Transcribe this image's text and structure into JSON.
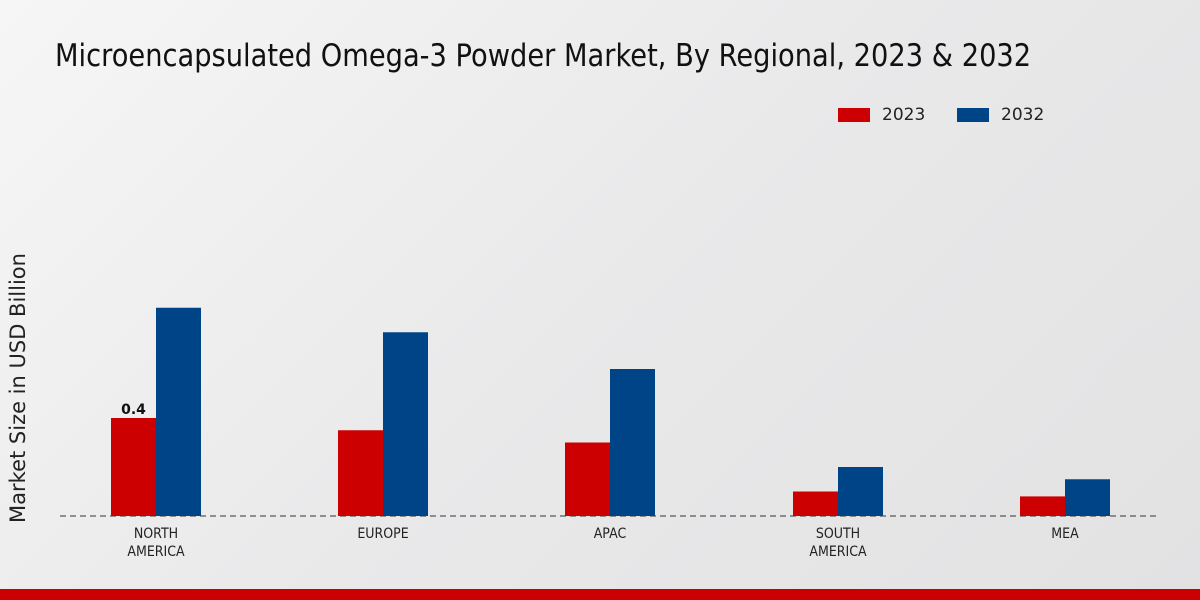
{
  "chart_data": {
    "type": "bar",
    "title": "Microencapsulated Omega-3 Powder Market, By Regional, 2023 & 2032",
    "xlabel": "",
    "ylabel": "Market Size in USD Billion",
    "categories": [
      "NORTH\nAMERICA",
      "EUROPE",
      "APAC",
      "SOUTH\nAMERICA",
      "MEA"
    ],
    "series": [
      {
        "name": "2023",
        "color": "#cc0000",
        "values": [
          0.4,
          0.35,
          0.3,
          0.1,
          0.08
        ]
      },
      {
        "name": "2032",
        "color": "#004488",
        "values": [
          0.85,
          0.75,
          0.6,
          0.2,
          0.15
        ]
      }
    ],
    "data_labels": [
      {
        "series": 0,
        "index": 0,
        "text": "0.4"
      }
    ],
    "ylim": [
      0,
      1.0
    ],
    "grid": false,
    "legend_position": "top-right"
  }
}
